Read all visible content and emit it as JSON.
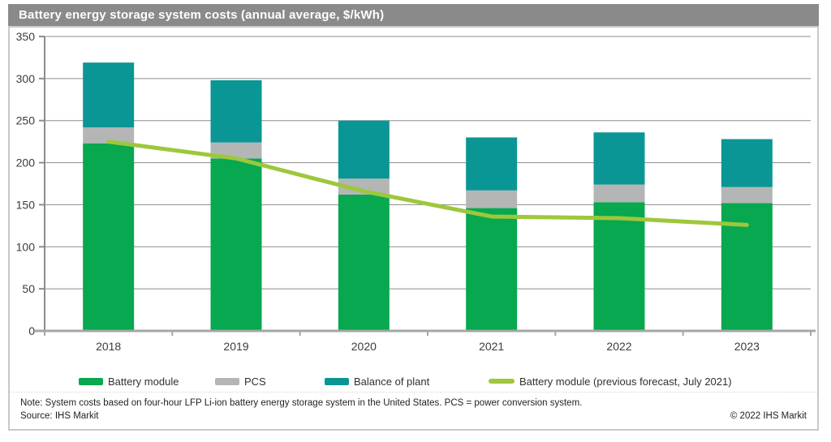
{
  "title": "Battery energy storage system costs (annual average, $/kWh)",
  "colors": {
    "battery_module": "#07a84f",
    "pcs": "#b3b6b5",
    "balance_of_plant": "#0a9694",
    "forecast_line": "#9ec73c",
    "title_bar": "#8a8a8a",
    "gridline": "#8c8c8c",
    "x_axis": "#a6a6a6",
    "y_axis": "#8c8c8c",
    "tick_text": "#3c3c3c"
  },
  "chart_data": {
    "type": "bar",
    "subtype": "stacked-bars-with-line-overlay",
    "title": "Battery energy storage system costs (annual average, $/kWh)",
    "xlabel": "",
    "ylabel": "$/kWh",
    "ylim": [
      0,
      350
    ],
    "ytick_step": 50,
    "ytick_labels": [
      "0",
      "50",
      "100",
      "150",
      "200",
      "250",
      "300",
      "350"
    ],
    "grid": true,
    "legend_position": "bottom",
    "categories": [
      "2018",
      "2019",
      "2020",
      "2021",
      "2022",
      "2023"
    ],
    "series": [
      {
        "name": "Battery module",
        "type": "bar",
        "color_key": "battery_module",
        "values": [
          223,
          205,
          162,
          146,
          153,
          152
        ]
      },
      {
        "name": "PCS",
        "type": "bar",
        "color_key": "pcs",
        "values": [
          19,
          19,
          19,
          21,
          21,
          19
        ]
      },
      {
        "name": "Balance of plant",
        "type": "bar",
        "color_key": "balance_of_plant",
        "values": [
          77,
          74,
          69,
          63,
          62,
          57
        ]
      },
      {
        "name": "Battery module (previous forecast, July 2021)",
        "type": "line",
        "color_key": "forecast_line",
        "values": [
          225,
          205,
          166,
          136,
          134,
          126
        ]
      }
    ],
    "stacked_totals": [
      319,
      298,
      250,
      230,
      236,
      228
    ]
  },
  "footer": {
    "note": "Note: System costs based on four-hour LFP Li-ion battery energy storage system in the United States. PCS = power conversion system.",
    "source": "Source: IHS Markit",
    "copyright": "© 2022 IHS Markit"
  }
}
